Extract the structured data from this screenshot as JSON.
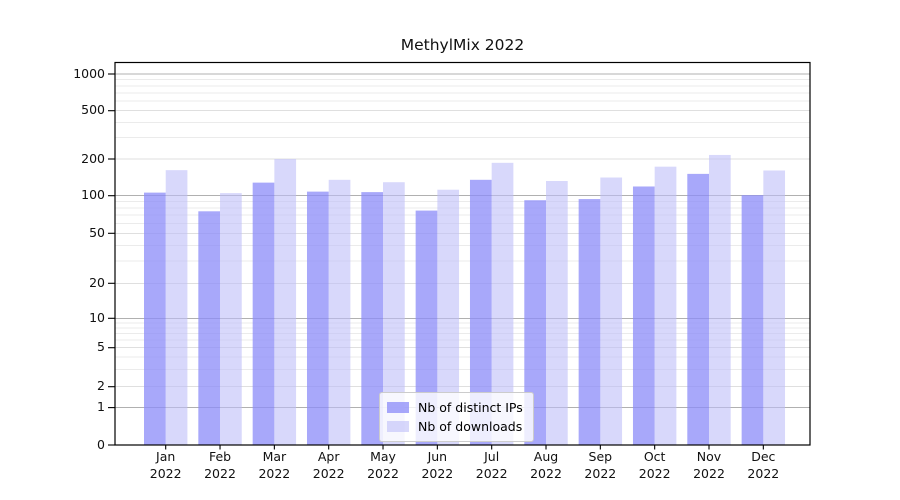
{
  "chart_data": {
    "type": "bar",
    "title": "MethylMix 2022",
    "categories": [
      "Jan",
      "Feb",
      "Mar",
      "Apr",
      "May",
      "Jun",
      "Jul",
      "Aug",
      "Sep",
      "Oct",
      "Nov",
      "Dec"
    ],
    "year": "2022",
    "series": [
      {
        "name": "Nb of distinct IPs",
        "values": [
          106,
          75,
          128,
          108,
          107,
          76,
          135,
          92,
          94,
          119,
          151,
          101
        ],
        "color": "rgba(140,140,248,0.76)"
      },
      {
        "name": "Nb of downloads",
        "values": [
          162,
          105,
          200,
          135,
          129,
          112,
          186,
          132,
          141,
          173,
          216,
          161
        ],
        "color": "rgba(190,190,248,0.6)"
      }
    ],
    "yscale": "symlog",
    "yticks": [
      0,
      1,
      2,
      5,
      10,
      20,
      50,
      100,
      200,
      500,
      1000
    ],
    "ylim": [
      0,
      1250
    ],
    "xlabel": "",
    "ylabel": "",
    "grid": "on",
    "legend_position": "lower-center-inside",
    "colors": {
      "major_grid": "#b0b0b0",
      "mid_grid": "#dfdfdf",
      "minor_grid": "#ebebeb",
      "axis": "#000000"
    }
  }
}
